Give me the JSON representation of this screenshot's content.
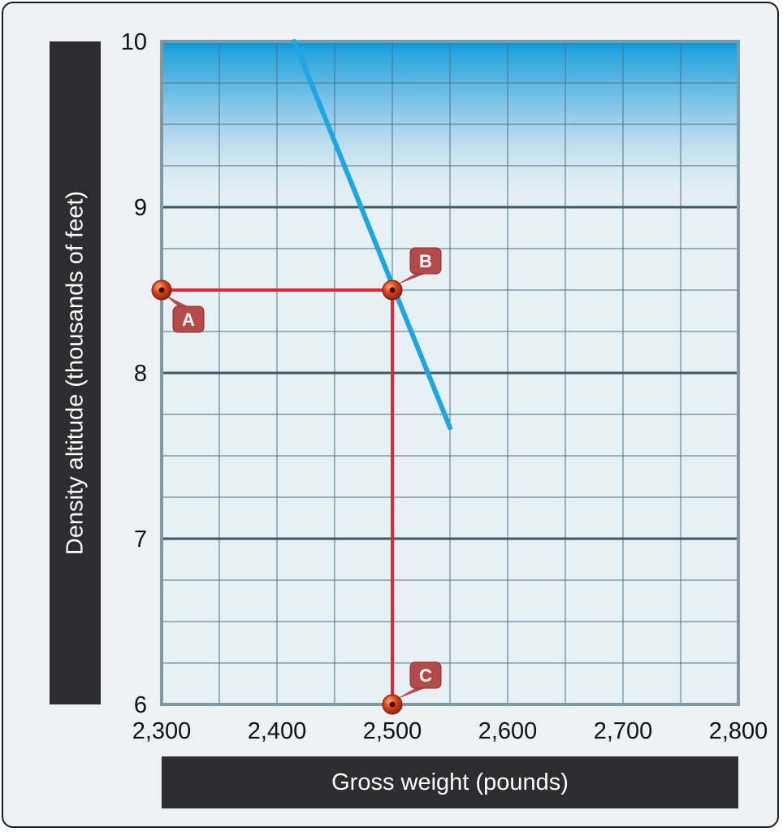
{
  "chart_data": {
    "type": "line",
    "xlabel": "Gross weight (pounds)",
    "ylabel": "Density altitude (thousands of feet)",
    "xlim": [
      2300,
      2800
    ],
    "ylim": [
      6,
      10
    ],
    "x_ticks": [
      2300,
      2400,
      2500,
      2600,
      2700,
      2800
    ],
    "x_tick_labels": [
      "2,300",
      "2,400",
      "2,500",
      "2,600",
      "2,700",
      "2,800"
    ],
    "y_ticks": [
      6,
      7,
      8,
      9,
      10
    ],
    "y_tick_labels": [
      "6",
      "7",
      "8",
      "9",
      "10"
    ],
    "grid": true,
    "series": [
      {
        "points": [
          {
            "x": 2415,
            "y": 10.0
          },
          {
            "x": 2550,
            "y": 7.67
          }
        ]
      }
    ],
    "reference_path": [
      {
        "x": 2300,
        "y": 8.5
      },
      {
        "x": 2500,
        "y": 8.5
      },
      {
        "x": 2500,
        "y": 6.0
      }
    ],
    "markers": [
      {
        "label": "A",
        "x": 2300,
        "y": 8.5
      },
      {
        "label": "B",
        "x": 2500,
        "y": 8.5
      },
      {
        "label": "C",
        "x": 2500,
        "y": 6.0
      }
    ],
    "colors": {
      "line": "#1aa7e3",
      "reference": "#e22632",
      "callout": "#b54a4a",
      "marker": "#c7361a",
      "axis_box": "#2d2d30",
      "gradient_top": "#0596d6",
      "plot_bg": "#e6f0f5"
    }
  }
}
